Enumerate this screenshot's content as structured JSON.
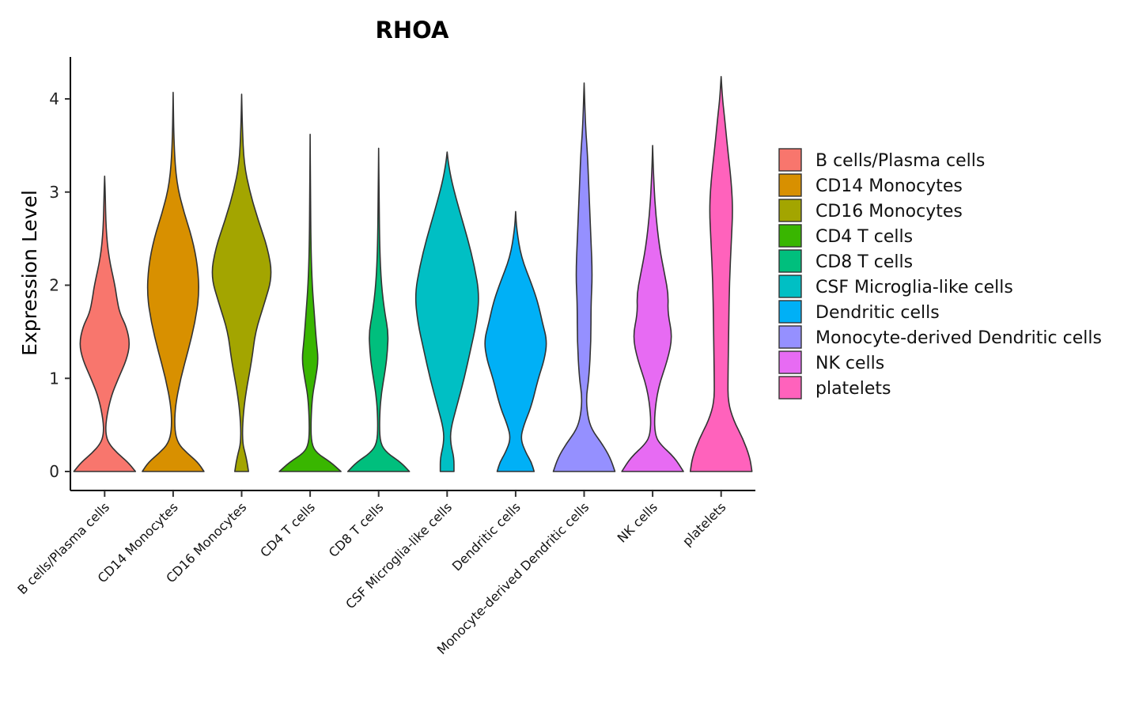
{
  "chart_data": {
    "type": "violin",
    "title": "RHOA",
    "xlabel": "",
    "ylabel": "Expression Level",
    "ylim": [
      -0.2,
      4.45
    ],
    "yticks": [
      0,
      1,
      2,
      3,
      4
    ],
    "categories": [
      "B cells/Plasma cells",
      "CD14 Monocytes",
      "CD16 Monocytes",
      "CD4 T cells",
      "CD8 T cells",
      "CSF Microglia-like cells",
      "Dendritic cells",
      "Monocyte-derived Dendritic cells",
      "NK cells",
      "platelets"
    ],
    "series": [
      {
        "name": "B cells/Plasma cells",
        "color": "#F8766D",
        "max": 3.17,
        "profile": [
          [
            0,
            0.45
          ],
          [
            0.1,
            0.34
          ],
          [
            0.2,
            0.18
          ],
          [
            0.3,
            0.06
          ],
          [
            0.4,
            0.015
          ],
          [
            0.55,
            0.02
          ],
          [
            0.8,
            0.09
          ],
          [
            1.0,
            0.2
          ],
          [
            1.2,
            0.32
          ],
          [
            1.37,
            0.37
          ],
          [
            1.55,
            0.32
          ],
          [
            1.7,
            0.22
          ],
          [
            1.85,
            0.18
          ],
          [
            2.0,
            0.15
          ],
          [
            2.3,
            0.06
          ],
          [
            2.6,
            0.02
          ],
          [
            3.0,
            0.008
          ],
          [
            3.17,
            0
          ]
        ]
      },
      {
        "name": "CD14 Monocytes",
        "color": "#D89000",
        "max": 4.07,
        "profile": [
          [
            0,
            0.45
          ],
          [
            0.1,
            0.36
          ],
          [
            0.2,
            0.2
          ],
          [
            0.3,
            0.07
          ],
          [
            0.45,
            0.02
          ],
          [
            0.7,
            0.03
          ],
          [
            1.0,
            0.11
          ],
          [
            1.3,
            0.22
          ],
          [
            1.6,
            0.32
          ],
          [
            1.9,
            0.38
          ],
          [
            2.2,
            0.36
          ],
          [
            2.5,
            0.28
          ],
          [
            2.8,
            0.15
          ],
          [
            3.1,
            0.05
          ],
          [
            3.5,
            0.012
          ],
          [
            4.07,
            0
          ]
        ]
      },
      {
        "name": "CD16 Monocytes",
        "color": "#A3A500",
        "max": 4.05,
        "profile": [
          [
            0,
            0.1
          ],
          [
            0.1,
            0.08
          ],
          [
            0.2,
            0.05
          ],
          [
            0.3,
            0.015
          ],
          [
            0.5,
            0.012
          ],
          [
            0.8,
            0.05
          ],
          [
            1.2,
            0.15
          ],
          [
            1.5,
            0.2
          ],
          [
            1.8,
            0.33
          ],
          [
            2.1,
            0.45
          ],
          [
            2.4,
            0.38
          ],
          [
            2.7,
            0.24
          ],
          [
            3.0,
            0.12
          ],
          [
            3.3,
            0.035
          ],
          [
            3.7,
            0.01
          ],
          [
            4.05,
            0
          ]
        ]
      },
      {
        "name": "CD4 T cells",
        "color": "#39B600",
        "max": 3.62,
        "profile": [
          [
            0,
            0.45
          ],
          [
            0.1,
            0.3
          ],
          [
            0.2,
            0.09
          ],
          [
            0.3,
            0.02
          ],
          [
            0.5,
            0.01
          ],
          [
            0.8,
            0.03
          ],
          [
            1.0,
            0.08
          ],
          [
            1.2,
            0.12
          ],
          [
            1.4,
            0.09
          ],
          [
            1.7,
            0.06
          ],
          [
            2.0,
            0.03
          ],
          [
            2.4,
            0.012
          ],
          [
            3.0,
            0.005
          ],
          [
            3.62,
            0
          ]
        ]
      },
      {
        "name": "CD8 T cells",
        "color": "#00BF7D",
        "max": 3.47,
        "profile": [
          [
            0,
            0.45
          ],
          [
            0.1,
            0.32
          ],
          [
            0.2,
            0.12
          ],
          [
            0.3,
            0.025
          ],
          [
            0.5,
            0.01
          ],
          [
            0.8,
            0.03
          ],
          [
            1.1,
            0.1
          ],
          [
            1.3,
            0.13
          ],
          [
            1.5,
            0.14
          ],
          [
            1.7,
            0.09
          ],
          [
            2.0,
            0.04
          ],
          [
            2.4,
            0.015
          ],
          [
            3.0,
            0.006
          ],
          [
            3.47,
            0
          ]
        ]
      },
      {
        "name": "CSF Microglia-like cells",
        "color": "#00BFC4",
        "max": 3.43,
        "profile": [
          [
            0,
            0.1
          ],
          [
            0.15,
            0.1
          ],
          [
            0.3,
            0.05
          ],
          [
            0.45,
            0.05
          ],
          [
            0.7,
            0.14
          ],
          [
            1.0,
            0.25
          ],
          [
            1.3,
            0.34
          ],
          [
            1.6,
            0.43
          ],
          [
            1.9,
            0.47
          ],
          [
            2.2,
            0.4
          ],
          [
            2.5,
            0.3
          ],
          [
            2.8,
            0.18
          ],
          [
            3.1,
            0.07
          ],
          [
            3.3,
            0.02
          ],
          [
            3.43,
            0
          ]
        ]
      },
      {
        "name": "Dendritic cells",
        "color": "#00B0F6",
        "max": 2.79,
        "profile": [
          [
            0,
            0.27
          ],
          [
            0.1,
            0.23
          ],
          [
            0.2,
            0.15
          ],
          [
            0.35,
            0.07
          ],
          [
            0.5,
            0.12
          ],
          [
            0.7,
            0.23
          ],
          [
            1.0,
            0.33
          ],
          [
            1.2,
            0.42
          ],
          [
            1.4,
            0.46
          ],
          [
            1.6,
            0.39
          ],
          [
            1.8,
            0.33
          ],
          [
            2.0,
            0.24
          ],
          [
            2.3,
            0.08
          ],
          [
            2.6,
            0.015
          ],
          [
            2.79,
            0
          ]
        ]
      },
      {
        "name": "Monocyte-derived Dendritic cells",
        "color": "#9590FF",
        "max": 4.17,
        "profile": [
          [
            0,
            0.45
          ],
          [
            0.15,
            0.38
          ],
          [
            0.3,
            0.26
          ],
          [
            0.45,
            0.11
          ],
          [
            0.6,
            0.05
          ],
          [
            0.8,
            0.03
          ],
          [
            1.0,
            0.07
          ],
          [
            1.4,
            0.1
          ],
          [
            1.8,
            0.1
          ],
          [
            2.1,
            0.12
          ],
          [
            2.5,
            0.1
          ],
          [
            3.0,
            0.07
          ],
          [
            3.4,
            0.05
          ],
          [
            3.7,
            0.02
          ],
          [
            4.17,
            0
          ]
        ]
      },
      {
        "name": "NK cells",
        "color": "#E76BF3",
        "max": 3.5,
        "profile": [
          [
            0,
            0.45
          ],
          [
            0.15,
            0.32
          ],
          [
            0.3,
            0.1
          ],
          [
            0.4,
            0.035
          ],
          [
            0.6,
            0.025
          ],
          [
            0.9,
            0.08
          ],
          [
            1.2,
            0.22
          ],
          [
            1.45,
            0.29
          ],
          [
            1.7,
            0.22
          ],
          [
            1.9,
            0.23
          ],
          [
            2.1,
            0.18
          ],
          [
            2.4,
            0.1
          ],
          [
            2.8,
            0.04
          ],
          [
            3.2,
            0.012
          ],
          [
            3.5,
            0
          ]
        ]
      },
      {
        "name": "platelets",
        "color": "#FF62BC",
        "max": 4.24,
        "profile": [
          [
            0,
            0.45
          ],
          [
            0.15,
            0.42
          ],
          [
            0.35,
            0.32
          ],
          [
            0.55,
            0.18
          ],
          [
            0.75,
            0.1
          ],
          [
            1.0,
            0.1
          ],
          [
            1.5,
            0.11
          ],
          [
            2.0,
            0.12
          ],
          [
            2.5,
            0.15
          ],
          [
            2.8,
            0.17
          ],
          [
            3.1,
            0.15
          ],
          [
            3.5,
            0.09
          ],
          [
            3.8,
            0.05
          ],
          [
            4.0,
            0.02
          ],
          [
            4.24,
            0
          ]
        ]
      }
    ],
    "legend": {
      "position": "right",
      "entries": [
        "B cells/Plasma cells",
        "CD14 Monocytes",
        "CD16 Monocytes",
        "CD4 T cells",
        "CD8 T cells",
        "CSF Microglia-like cells",
        "Dendritic cells",
        "Monocyte-derived Dendritic cells",
        "NK cells",
        "platelets"
      ]
    }
  }
}
